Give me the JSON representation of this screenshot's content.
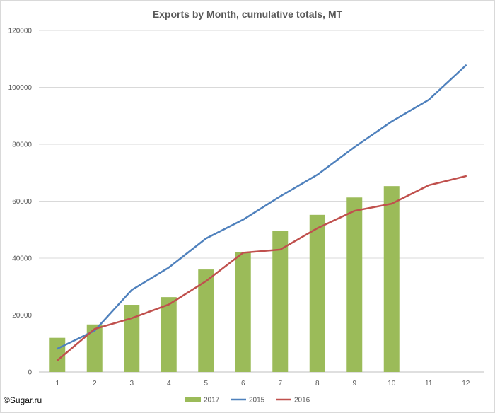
{
  "chart_data": {
    "type": "bar",
    "title": "Exports by Month, cumulative totals, MT",
    "xlabel": "",
    "ylabel": "",
    "categories": [
      "1",
      "2",
      "3",
      "4",
      "5",
      "6",
      "7",
      "8",
      "9",
      "10",
      "11",
      "12"
    ],
    "ylim": [
      0,
      120000
    ],
    "yticks": [
      0,
      20000,
      40000,
      60000,
      80000,
      100000,
      120000
    ],
    "grid": true,
    "legend_position": "bottom",
    "series": [
      {
        "name": "2017",
        "type": "bar",
        "color": "#9bbb59",
        "values": [
          12000,
          16700,
          23600,
          26300,
          36000,
          42100,
          49600,
          55200,
          61300,
          65300,
          null,
          null
        ]
      },
      {
        "name": "2015",
        "type": "line",
        "color": "#4f81bd",
        "values": [
          8200,
          14500,
          28800,
          36700,
          46900,
          53500,
          61700,
          69300,
          79000,
          88000,
          95600,
          107700
        ]
      },
      {
        "name": "2016",
        "type": "line",
        "color": "#c0504d",
        "values": [
          4100,
          15100,
          18900,
          23700,
          31900,
          41900,
          43000,
          50500,
          56600,
          59100,
          65600,
          68800
        ]
      }
    ]
  },
  "credit": "©Sugar.ru"
}
